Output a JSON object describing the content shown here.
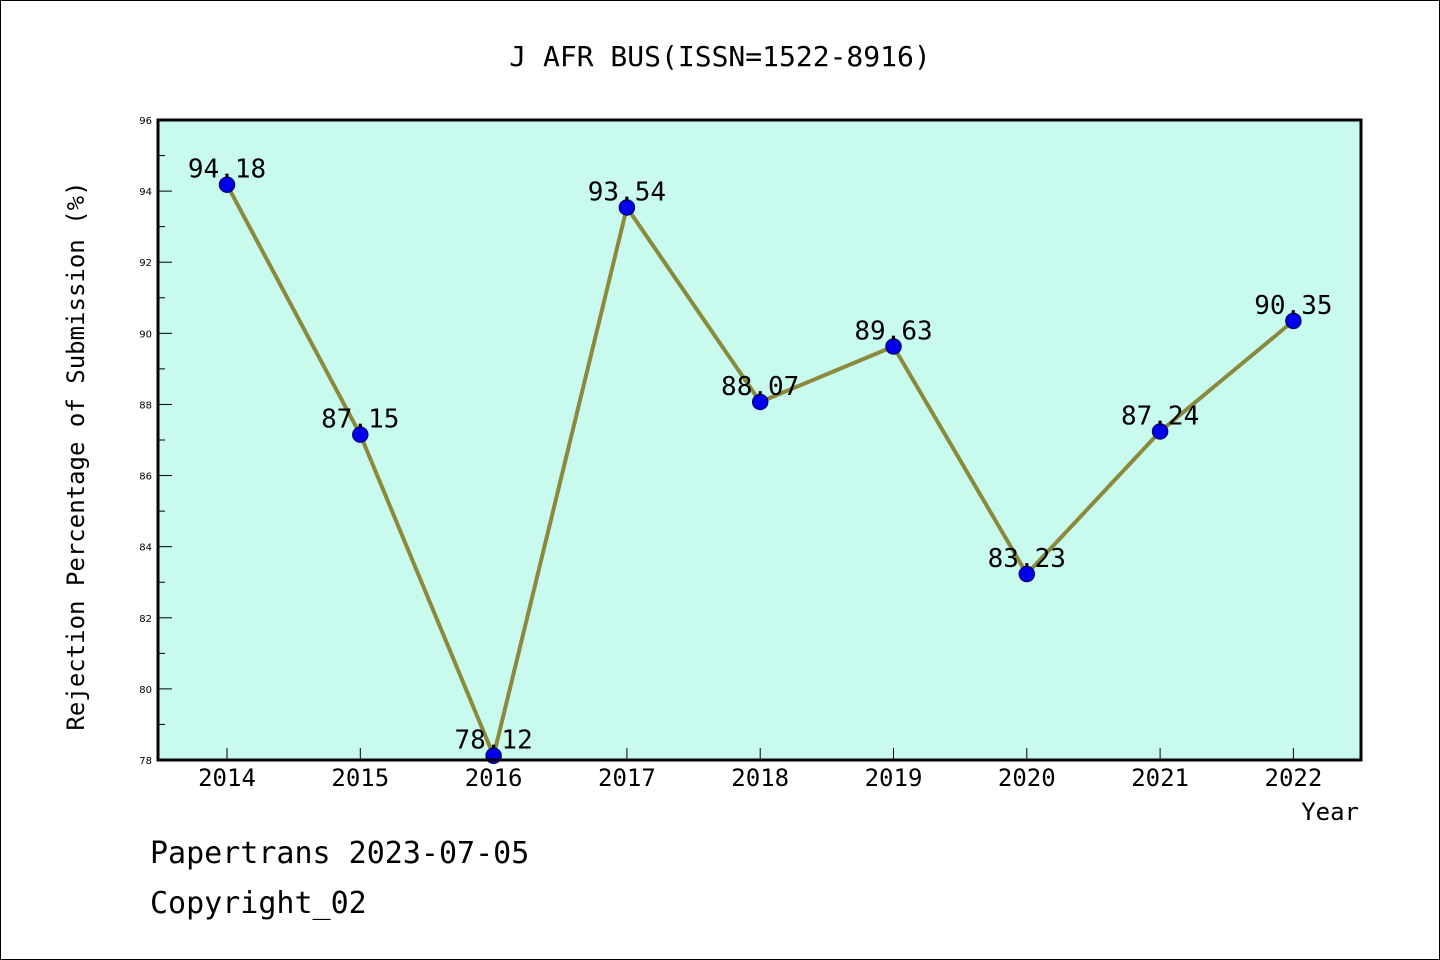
{
  "chart_data": {
    "type": "line",
    "title": "J AFR BUS(ISSN=1522-8916)",
    "xlabel": "Year",
    "ylabel": "Rejection Percentage of Submission (%)",
    "categories": [
      "2014",
      "2015",
      "2016",
      "2017",
      "2018",
      "2019",
      "2020",
      "2021",
      "2022"
    ],
    "series": [
      {
        "values": [
          94.18,
          87.15,
          78.12,
          93.54,
          88.07,
          89.63,
          83.23,
          87.24,
          90.35
        ],
        "labels": [
          "94.18",
          "87.15",
          "78.12",
          "93.54",
          "88.07",
          "89.63",
          "83.23",
          "87.24",
          "90.35"
        ]
      }
    ],
    "ylim": [
      78,
      96
    ],
    "yticks": [
      "78",
      "80",
      "82",
      "84",
      "86",
      "88",
      "90",
      "92",
      "94",
      "96"
    ],
    "grid": false,
    "legend": "none",
    "colors": {
      "plot_background": "#c8fbee",
      "line": "#8b8a3c",
      "marker": "#0000ee",
      "marker_edge": "#000080"
    }
  },
  "footer": {
    "line1": "Papertrans 2023-07-05",
    "line2": "Copyright_02"
  }
}
